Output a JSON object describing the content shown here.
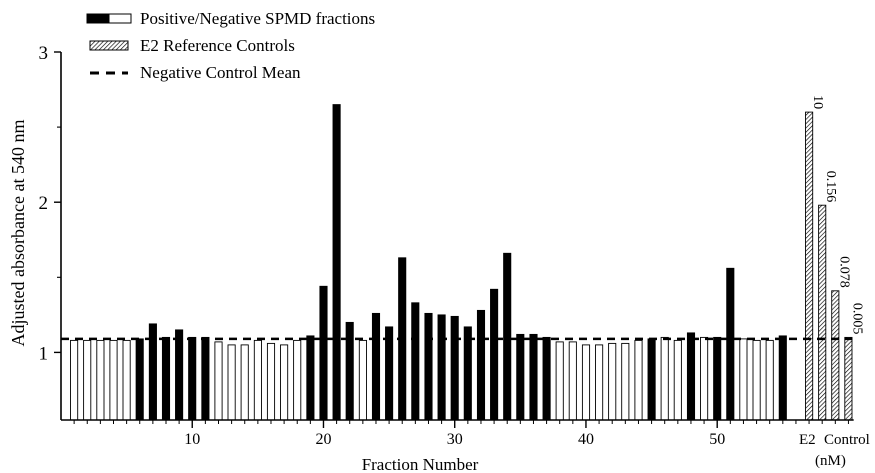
{
  "chart_data": {
    "type": "bar",
    "xlabel": "Fraction Number",
    "ylabel": "Adjusted absorbance at 540 nm",
    "ylim": [
      0.55,
      3.0
    ],
    "yticks": [
      1,
      2,
      3
    ],
    "xticks": [
      10,
      20,
      30,
      40,
      50
    ],
    "xlim": [
      0,
      60.5
    ],
    "negative_control_mean": 1.09,
    "legend": [
      {
        "key": "fractions",
        "label": "Positive/Negative SPMD fractions",
        "symbol": "black-white-bar"
      },
      {
        "key": "e2",
        "label": "E2 Reference Controls",
        "symbol": "hatched-bar"
      },
      {
        "key": "mean",
        "label": "Negative Control Mean",
        "symbol": "dashed-line"
      }
    ],
    "legend_position": "top-left",
    "series": [
      {
        "name": "Positive/Negative SPMD fractions",
        "x": [
          1,
          2,
          3,
          4,
          5,
          6,
          7,
          8,
          9,
          10,
          11,
          12,
          13,
          14,
          15,
          16,
          17,
          18,
          19,
          20,
          21,
          22,
          23,
          24,
          25,
          26,
          27,
          28,
          29,
          30,
          31,
          32,
          33,
          34,
          35,
          36,
          37,
          38,
          39,
          40,
          41,
          42,
          43,
          44,
          45,
          46,
          47,
          48,
          49,
          50,
          51,
          52,
          53,
          54,
          55
        ],
        "values": [
          1.08,
          1.08,
          1.08,
          1.08,
          1.08,
          1.09,
          1.19,
          1.1,
          1.15,
          1.1,
          1.1,
          1.07,
          1.05,
          1.05,
          1.08,
          1.06,
          1.05,
          1.08,
          1.11,
          1.44,
          2.65,
          1.2,
          1.08,
          1.26,
          1.17,
          1.63,
          1.33,
          1.26,
          1.25,
          1.24,
          1.17,
          1.28,
          1.42,
          1.66,
          1.12,
          1.12,
          1.1,
          1.07,
          1.07,
          1.05,
          1.05,
          1.06,
          1.06,
          1.08,
          1.09,
          1.1,
          1.08,
          1.13,
          1.1,
          1.1,
          1.56,
          1.09,
          1.08,
          1.08,
          1.11
        ],
        "positive": [
          false,
          false,
          false,
          false,
          false,
          true,
          true,
          true,
          true,
          true,
          true,
          false,
          false,
          false,
          false,
          false,
          false,
          false,
          true,
          true,
          true,
          true,
          false,
          true,
          true,
          true,
          true,
          true,
          true,
          true,
          true,
          true,
          true,
          true,
          true,
          true,
          true,
          false,
          false,
          false,
          false,
          false,
          false,
          false,
          true,
          false,
          false,
          true,
          false,
          true,
          true,
          false,
          false,
          false,
          true
        ]
      },
      {
        "name": "E2 Reference Controls",
        "categories": [
          "10",
          "0.156",
          "0.078",
          "0.005"
        ],
        "x": [
          57,
          58,
          59,
          60
        ],
        "values": [
          2.6,
          1.98,
          1.41,
          1.1
        ]
      }
    ],
    "e2_group_label": "E2",
    "e2_group_unit": "(nM)",
    "control_label": "Control"
  }
}
